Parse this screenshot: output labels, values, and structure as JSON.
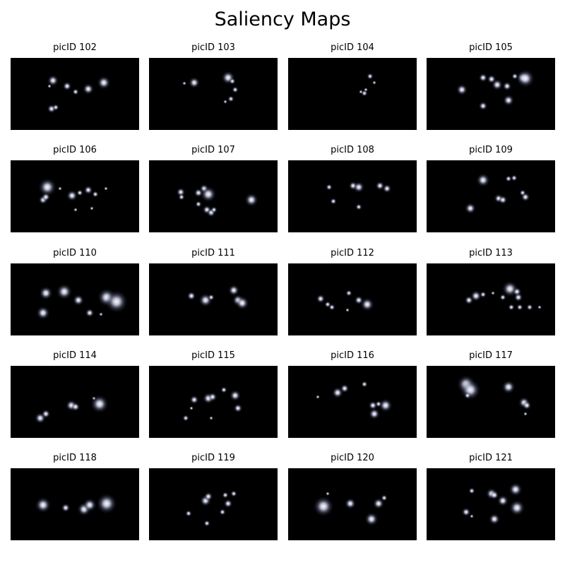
{
  "title": "Saliency Maps",
  "panels": [
    {
      "label": "picID 102"
    },
    {
      "label": "picID 103"
    },
    {
      "label": "picID 104"
    },
    {
      "label": "picID 105"
    },
    {
      "label": "picID 106"
    },
    {
      "label": "picID 107"
    },
    {
      "label": "picID 108"
    },
    {
      "label": "picID 109"
    },
    {
      "label": "picID 110"
    },
    {
      "label": "picID 111"
    },
    {
      "label": "picID 112"
    },
    {
      "label": "picID 113"
    },
    {
      "label": "picID 114"
    },
    {
      "label": "picID 115"
    },
    {
      "label": "picID 116"
    },
    {
      "label": "picID 117"
    },
    {
      "label": "picID 118"
    },
    {
      "label": "picID 119"
    },
    {
      "label": "picID 120"
    },
    {
      "label": "picID 121"
    }
  ]
}
